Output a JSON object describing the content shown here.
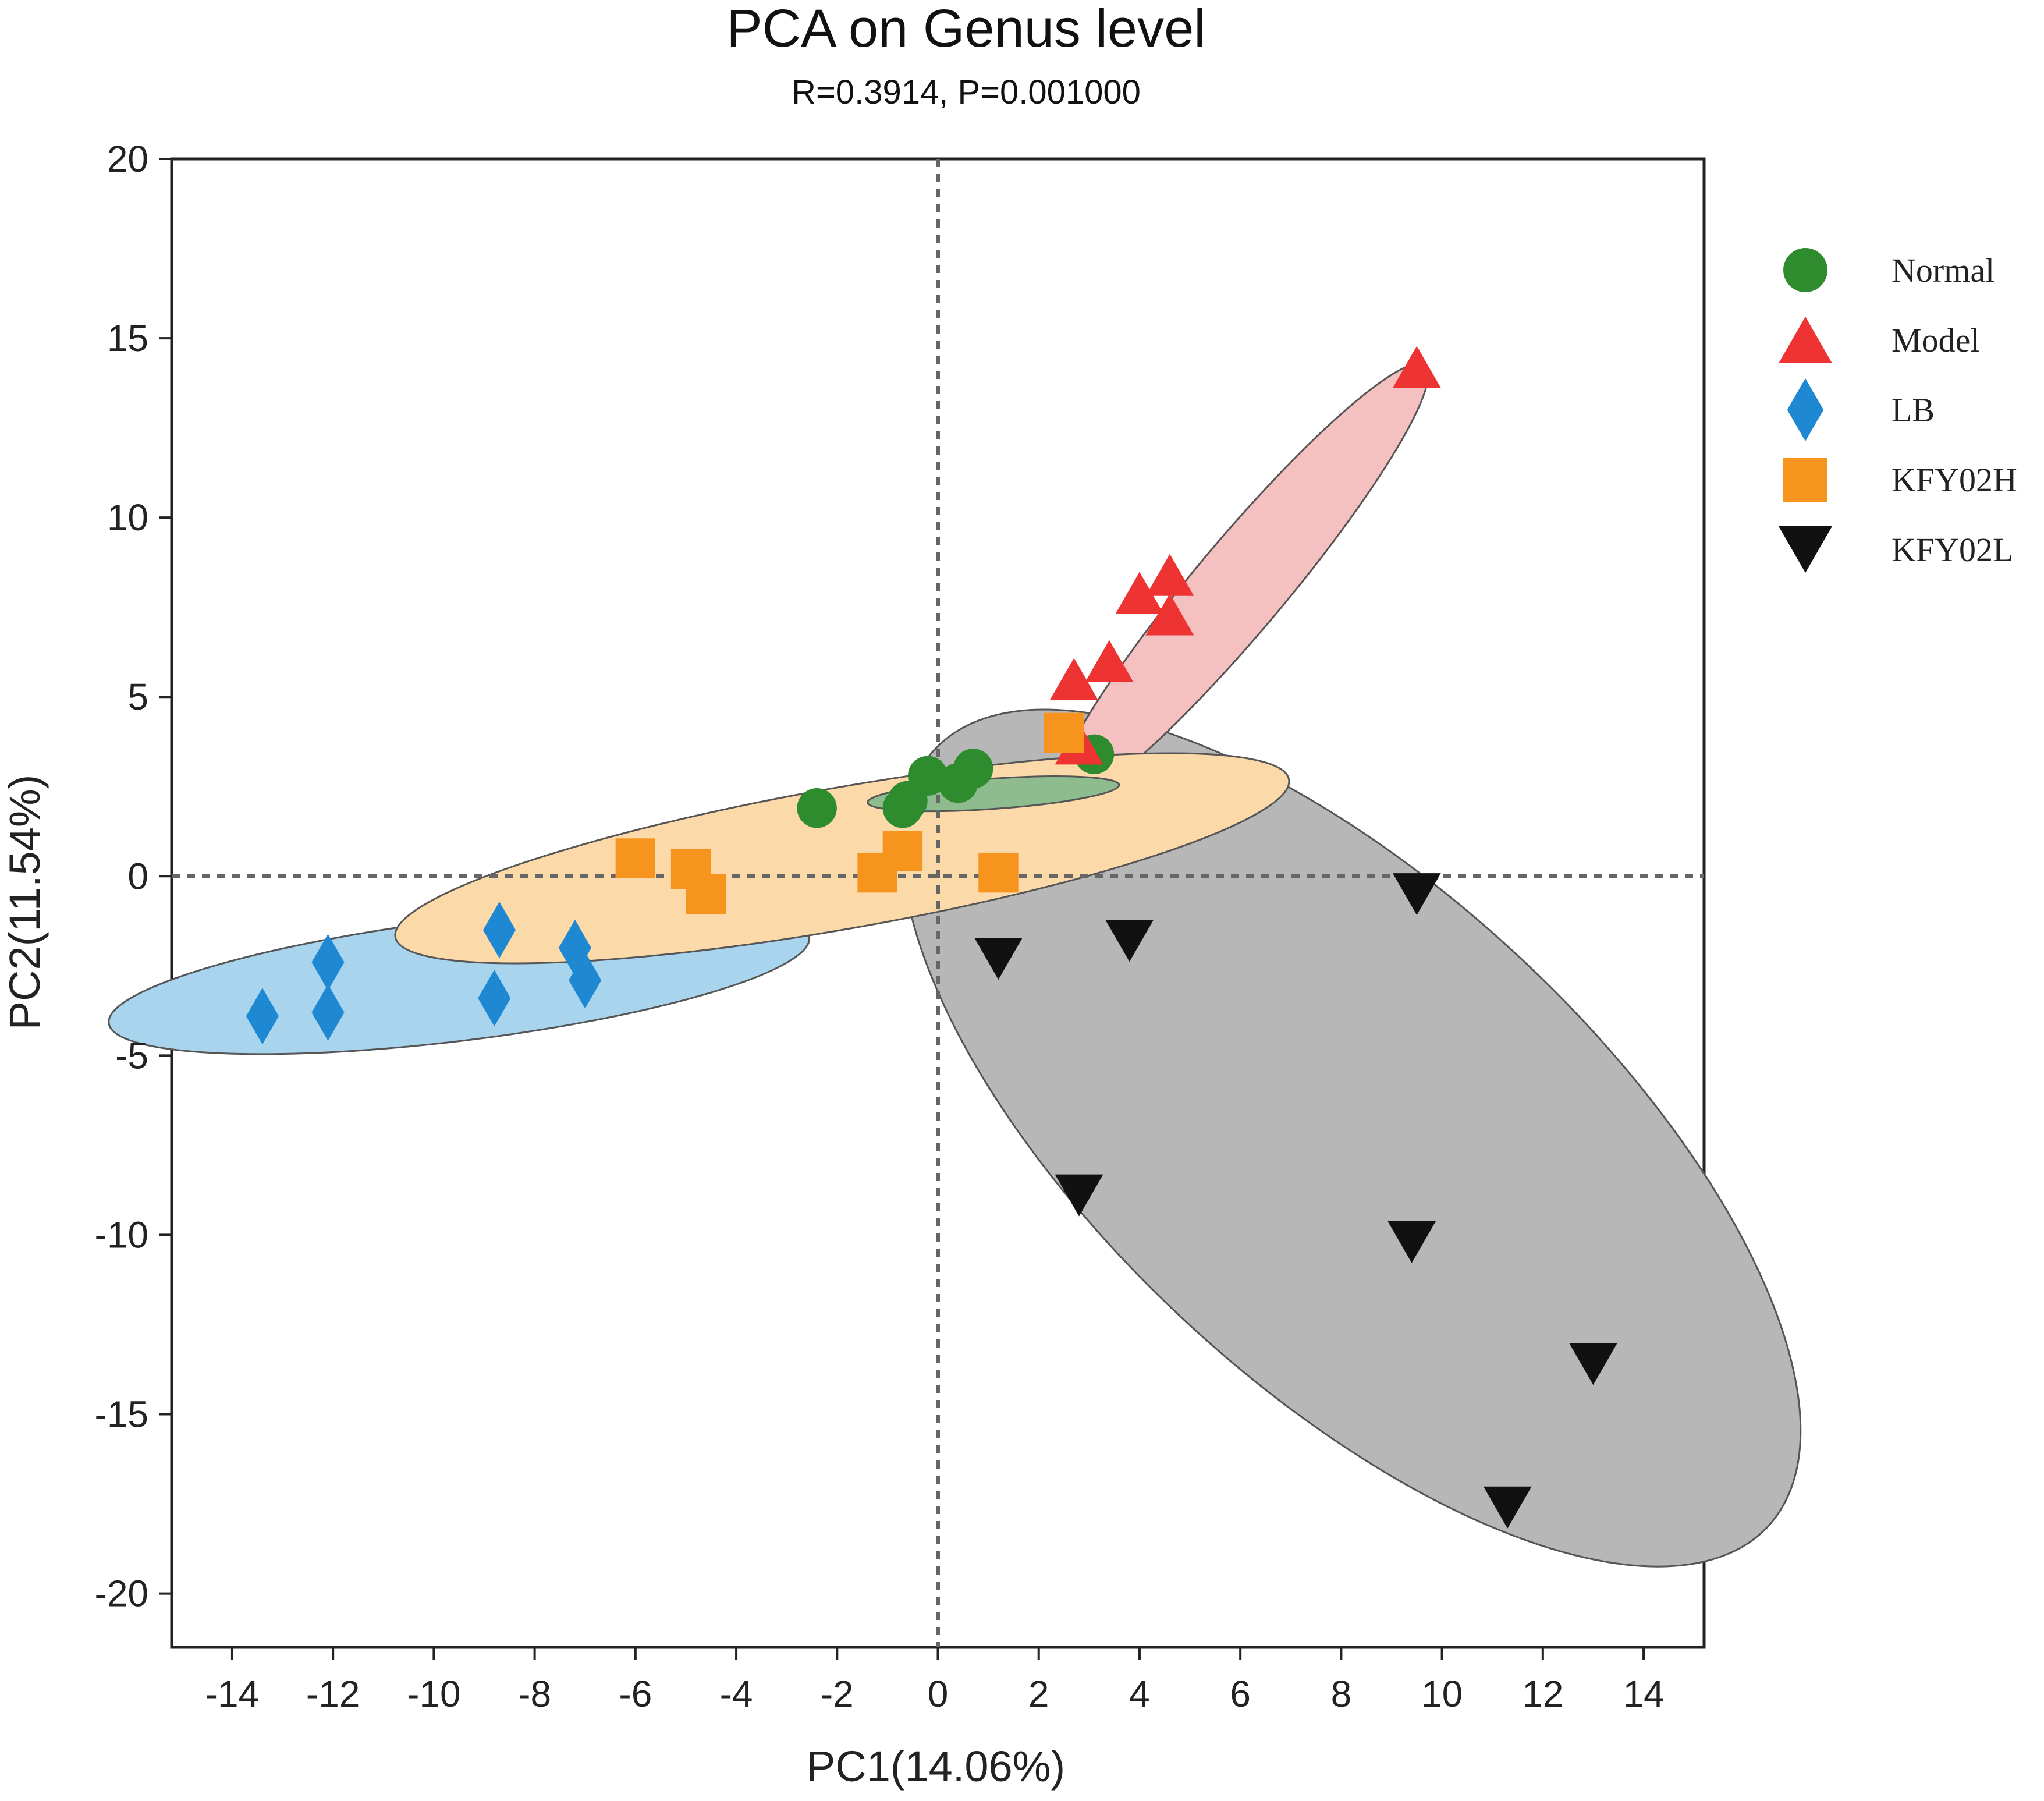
{
  "chart_data": {
    "type": "scatter",
    "title": "PCA on Genus level",
    "subtitle": "R=0.3914, P=0.001000",
    "xlabel": "PC1(14.06%)",
    "ylabel": "PC2(11.54%)",
    "xlim": [
      -15.2,
      15.2
    ],
    "ylim": [
      -21.5,
      20
    ],
    "xticks": [
      -14,
      -12,
      -10,
      -8,
      -6,
      -4,
      -2,
      0,
      2,
      4,
      6,
      8,
      10,
      12,
      14
    ],
    "yticks": [
      20,
      15,
      10,
      5,
      0,
      -5,
      -10,
      -15,
      -20
    ],
    "reference_lines": {
      "x": 0,
      "y": 0,
      "style": "dotted"
    },
    "legend_position": "right",
    "series": [
      {
        "name": "Normal",
        "marker": "circle",
        "color": "#2e8b2e",
        "points": [
          [
            -2.4,
            1.9
          ],
          [
            -0.7,
            1.9
          ],
          [
            -0.6,
            2.1
          ],
          [
            -0.2,
            2.8
          ],
          [
            0.4,
            2.6
          ],
          [
            0.7,
            3.0
          ],
          [
            3.1,
            3.4
          ]
        ],
        "ellipse": {
          "cx": 1.1,
          "cy": 2.3,
          "rx": 2.5,
          "ry": 0.3,
          "angle_deg": 4.0,
          "fill": "#8fbc8f"
        }
      },
      {
        "name": "Model",
        "marker": "triangle-up",
        "color": "#ee3333",
        "points": [
          [
            2.8,
            3.7
          ],
          [
            2.7,
            5.5
          ],
          [
            3.4,
            6.0
          ],
          [
            4.0,
            7.9
          ],
          [
            4.6,
            8.4
          ],
          [
            4.6,
            7.3
          ],
          [
            9.5,
            14.2
          ]
        ],
        "ellipse": {
          "cx": 6.0,
          "cy": 8.1,
          "rx": 5.7,
          "ry": 0.9,
          "angle_deg": 50.0,
          "fill": "#f4c0c0"
        }
      },
      {
        "name": "LB",
        "marker": "diamond",
        "color": "#1e88d2",
        "points": [
          [
            -13.4,
            -3.9
          ],
          [
            -12.1,
            -2.4
          ],
          [
            -12.1,
            -3.8
          ],
          [
            -8.7,
            -1.5
          ],
          [
            -8.8,
            -3.4
          ],
          [
            -7.2,
            -2.0
          ],
          [
            -7.0,
            -2.9
          ]
        ],
        "ellipse": {
          "cx": -9.5,
          "cy": -2.9,
          "rx": 7.0,
          "ry": 1.2,
          "angle_deg": 7.0,
          "fill": "#a8d4ee"
        }
      },
      {
        "name": "KFY02H",
        "marker": "square",
        "color": "#f7941d",
        "points": [
          [
            -6.0,
            0.5
          ],
          [
            -4.9,
            0.2
          ],
          [
            -4.6,
            -0.5
          ],
          [
            -1.2,
            0.1
          ],
          [
            -0.7,
            0.7
          ],
          [
            1.2,
            0.1
          ],
          [
            2.5,
            4.0
          ]
        ],
        "ellipse": {
          "cx": -1.9,
          "cy": 0.5,
          "rx": 9.0,
          "ry": 1.4,
          "angle_deg": 10.0,
          "fill": "#fcd9a8"
        }
      },
      {
        "name": "KFY02L",
        "marker": "triangle-down",
        "color": "#111111",
        "points": [
          [
            1.2,
            -2.3
          ],
          [
            3.8,
            -1.8
          ],
          [
            9.5,
            -0.5
          ],
          [
            2.8,
            -8.9
          ],
          [
            9.4,
            -10.2
          ],
          [
            13.0,
            -13.6
          ],
          [
            11.3,
            -17.6
          ]
        ],
        "ellipse": {
          "cx": 8.2,
          "cy": -7.3,
          "rx": 11.3,
          "ry": 4.9,
          "angle_deg": -43.0,
          "fill": "#b7b7b7"
        }
      }
    ]
  }
}
